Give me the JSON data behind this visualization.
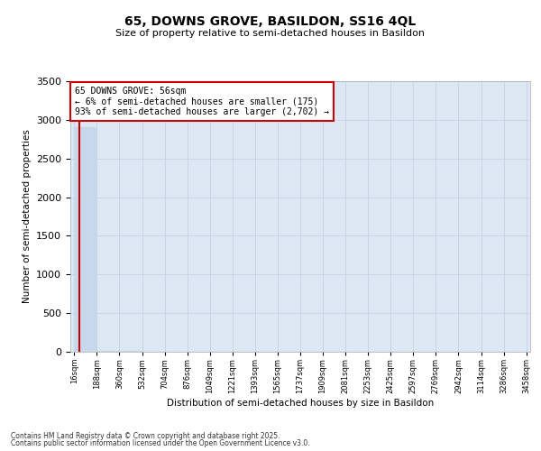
{
  "title_line1": "65, DOWNS GROVE, BASILDON, SS16 4QL",
  "title_line2": "Size of property relative to semi-detached houses in Basildon",
  "xlabel": "Distribution of semi-detached houses by size in Basildon",
  "ylabel": "Number of semi-detached properties",
  "annotation_line1": "65 DOWNS GROVE: 56sqm",
  "annotation_line2": "← 6% of semi-detached houses are smaller (175)",
  "annotation_line3": "93% of semi-detached houses are larger (2,702) →",
  "bin_labels": [
    "16sqm",
    "188sqm",
    "360sqm",
    "532sqm",
    "704sqm",
    "876sqm",
    "1049sqm",
    "1221sqm",
    "1393sqm",
    "1565sqm",
    "1737sqm",
    "1909sqm",
    "2081sqm",
    "2253sqm",
    "2425sqm",
    "2597sqm",
    "2769sqm",
    "2942sqm",
    "3114sqm",
    "3286sqm",
    "3458sqm"
  ],
  "bar_values": [
    2900,
    15,
    8,
    5,
    4,
    3,
    2,
    2,
    1,
    1,
    1,
    1,
    1,
    1,
    0,
    0,
    0,
    0,
    0,
    0
  ],
  "bar_color": "#c8d8ec",
  "bar_edge_color": "#c8d8ec",
  "grid_color": "#c8d4e8",
  "background_color": "#dce8f4",
  "red_line_color": "#cc0000",
  "annotation_box_edge": "#cc0000",
  "ylim": [
    0,
    3500
  ],
  "yticks": [
    0,
    500,
    1000,
    1500,
    2000,
    2500,
    3000,
    3500
  ],
  "property_size_sqm": 56,
  "footnote_line1": "Contains HM Land Registry data © Crown copyright and database right 2025.",
  "footnote_line2": "Contains public sector information licensed under the Open Government Licence v3.0."
}
